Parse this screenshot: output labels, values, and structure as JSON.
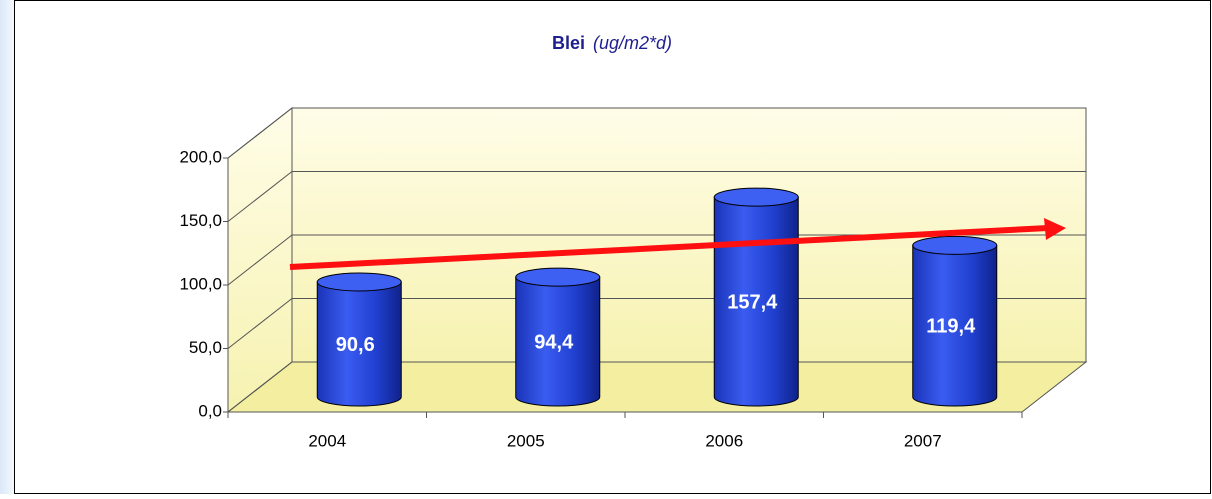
{
  "chart_data": {
    "type": "bar3d",
    "title": "Blei",
    "title_unit": "(ug/m2*d)",
    "categories": [
      "2004",
      "2005",
      "2006",
      "2007"
    ],
    "values": [
      90.6,
      94.4,
      157.4,
      119.4
    ],
    "value_labels": [
      "90,6",
      "94,4",
      "157,4",
      "119,4"
    ],
    "color": "#2b4de0",
    "ylim": [
      0,
      200
    ],
    "yticks": [
      {
        "value": 0,
        "label": "0,0"
      },
      {
        "value": 50,
        "label": "50,0"
      },
      {
        "value": 100,
        "label": "100,0"
      },
      {
        "value": 150,
        "label": "150,0"
      },
      {
        "value": 200,
        "label": "200,0"
      }
    ],
    "grid": true
  }
}
